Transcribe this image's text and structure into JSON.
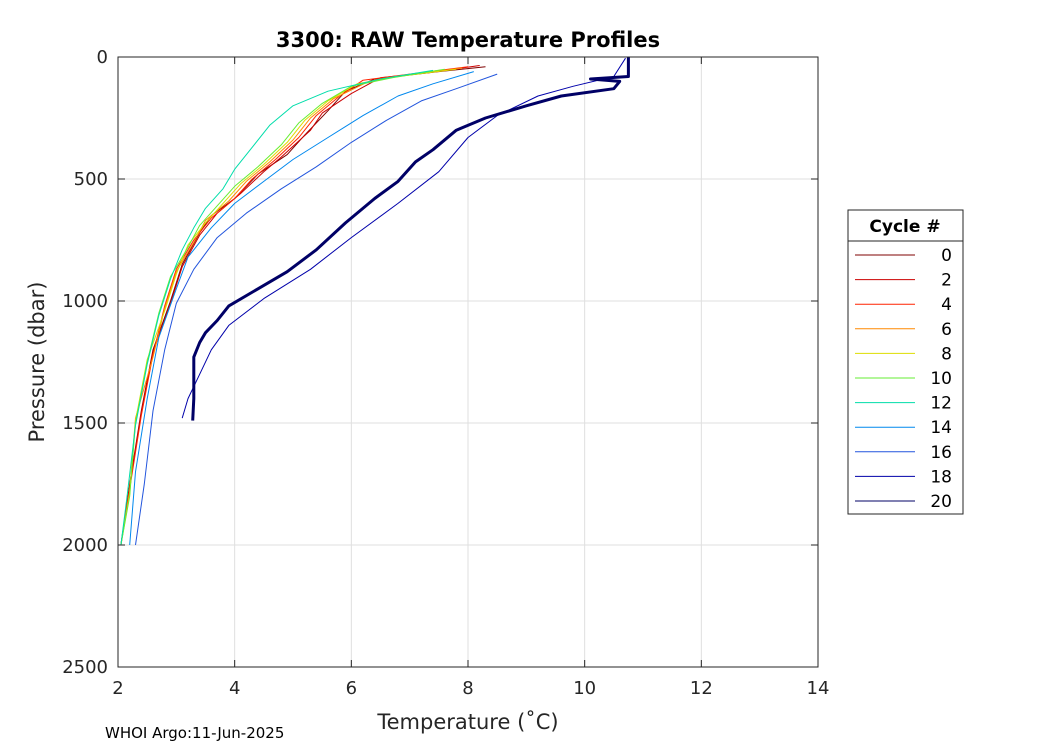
{
  "chart_data": {
    "type": "line",
    "title": "3300: RAW Temperature Profiles",
    "xlabel": "Temperature (˚C)",
    "ylabel": "Pressure (dbar)",
    "xlim": [
      2,
      14
    ],
    "ylim": [
      0,
      2500
    ],
    "y_reversed": true,
    "grid": true,
    "xticks": [
      2,
      4,
      6,
      8,
      10,
      12,
      14
    ],
    "yticks": [
      0,
      500,
      1000,
      1500,
      2000,
      2500
    ],
    "legend": {
      "title": "Cycle #",
      "placement": "right",
      "entries": [
        "0",
        "2",
        "4",
        "6",
        "8",
        "10",
        "12",
        "14",
        "16",
        "18",
        "20"
      ]
    },
    "series": [
      {
        "name": "0",
        "color": "#7f0000",
        "width": 1,
        "points": [
          [
            8.3,
            40
          ],
          [
            7.5,
            60
          ],
          [
            6.4,
            90
          ],
          [
            5.9,
            140
          ],
          [
            5.6,
            220
          ],
          [
            5.2,
            320
          ],
          [
            4.9,
            400
          ],
          [
            4.4,
            480
          ],
          [
            4.0,
            580
          ],
          [
            3.6,
            650
          ],
          [
            3.4,
            720
          ],
          [
            3.1,
            850
          ],
          [
            2.9,
            1000
          ],
          [
            2.6,
            1200
          ],
          [
            2.4,
            1450
          ],
          [
            2.2,
            1750
          ],
          [
            2.05,
            2000
          ]
        ]
      },
      {
        "name": "2",
        "color": "#cc0000",
        "width": 1,
        "points": [
          [
            8.2,
            35
          ],
          [
            7.3,
            65
          ],
          [
            6.5,
            85
          ],
          [
            6.0,
            150
          ],
          [
            5.5,
            230
          ],
          [
            5.3,
            300
          ],
          [
            4.8,
            410
          ],
          [
            4.5,
            470
          ],
          [
            4.1,
            560
          ],
          [
            3.7,
            640
          ],
          [
            3.4,
            730
          ],
          [
            3.1,
            860
          ],
          [
            2.9,
            1010
          ],
          [
            2.6,
            1210
          ],
          [
            2.4,
            1460
          ],
          [
            2.2,
            1760
          ],
          [
            2.05,
            2000
          ]
        ]
      },
      {
        "name": "4",
        "color": "#ff2200",
        "width": 1,
        "points": [
          [
            8.0,
            40
          ],
          [
            7.0,
            70
          ],
          [
            6.2,
            95
          ],
          [
            5.8,
            160
          ],
          [
            5.4,
            240
          ],
          [
            5.1,
            330
          ],
          [
            4.7,
            420
          ],
          [
            4.3,
            500
          ],
          [
            4.0,
            580
          ],
          [
            3.6,
            660
          ],
          [
            3.3,
            750
          ],
          [
            3.0,
            870
          ],
          [
            2.8,
            1020
          ],
          [
            2.6,
            1220
          ],
          [
            2.4,
            1470
          ],
          [
            2.2,
            1770
          ],
          [
            2.05,
            2000
          ]
        ]
      },
      {
        "name": "6",
        "color": "#ff8800",
        "width": 1,
        "points": [
          [
            7.9,
            45
          ],
          [
            6.9,
            75
          ],
          [
            6.3,
            100
          ],
          [
            5.7,
            170
          ],
          [
            5.3,
            250
          ],
          [
            5.0,
            340
          ],
          [
            4.6,
            430
          ],
          [
            4.2,
            510
          ],
          [
            3.9,
            590
          ],
          [
            3.5,
            670
          ],
          [
            3.3,
            760
          ],
          [
            3.0,
            880
          ],
          [
            2.8,
            1030
          ],
          [
            2.6,
            1230
          ],
          [
            2.3,
            1480
          ],
          [
            2.2,
            1780
          ],
          [
            2.05,
            2000
          ]
        ]
      },
      {
        "name": "8",
        "color": "#dddd00",
        "width": 1,
        "points": [
          [
            7.8,
            50
          ],
          [
            6.8,
            80
          ],
          [
            6.1,
            110
          ],
          [
            5.6,
            180
          ],
          [
            5.2,
            260
          ],
          [
            4.9,
            350
          ],
          [
            4.5,
            440
          ],
          [
            4.1,
            520
          ],
          [
            3.8,
            600
          ],
          [
            3.5,
            680
          ],
          [
            3.2,
            770
          ],
          [
            3.0,
            890
          ],
          [
            2.8,
            1040
          ],
          [
            2.5,
            1240
          ],
          [
            2.3,
            1490
          ],
          [
            2.2,
            1790
          ],
          [
            2.05,
            2000
          ]
        ]
      },
      {
        "name": "10",
        "color": "#66ee33",
        "width": 1,
        "points": [
          [
            7.6,
            50
          ],
          [
            6.7,
            85
          ],
          [
            6.0,
            120
          ],
          [
            5.5,
            190
          ],
          [
            5.1,
            270
          ],
          [
            4.8,
            360
          ],
          [
            4.4,
            450
          ],
          [
            4.0,
            530
          ],
          [
            3.7,
            610
          ],
          [
            3.4,
            690
          ],
          [
            3.2,
            780
          ],
          [
            2.9,
            900
          ],
          [
            2.7,
            1050
          ],
          [
            2.5,
            1250
          ],
          [
            2.3,
            1500
          ],
          [
            2.2,
            1800
          ],
          [
            2.05,
            2000
          ]
        ]
      },
      {
        "name": "12",
        "color": "#00ddaa",
        "width": 1,
        "points": [
          [
            7.4,
            55
          ],
          [
            6.5,
            90
          ],
          [
            5.6,
            140
          ],
          [
            5.0,
            200
          ],
          [
            4.6,
            280
          ],
          [
            4.3,
            370
          ],
          [
            4.0,
            460
          ],
          [
            3.8,
            540
          ],
          [
            3.5,
            620
          ],
          [
            3.3,
            700
          ],
          [
            3.1,
            790
          ],
          [
            2.9,
            910
          ],
          [
            2.7,
            1060
          ],
          [
            2.5,
            1260
          ],
          [
            2.3,
            1510
          ],
          [
            2.15,
            1810
          ],
          [
            2.05,
            2000
          ]
        ]
      },
      {
        "name": "14",
        "color": "#0088ee",
        "width": 1,
        "points": [
          [
            8.1,
            60
          ],
          [
            7.4,
            110
          ],
          [
            6.8,
            160
          ],
          [
            6.2,
            240
          ],
          [
            5.6,
            330
          ],
          [
            5.0,
            420
          ],
          [
            4.5,
            510
          ],
          [
            4.0,
            600
          ],
          [
            3.6,
            700
          ],
          [
            3.2,
            820
          ],
          [
            3.0,
            950
          ],
          [
            2.7,
            1150
          ],
          [
            2.5,
            1400
          ],
          [
            2.3,
            1700
          ],
          [
            2.2,
            2000
          ]
        ]
      },
      {
        "name": "16",
        "color": "#2255dd",
        "width": 1,
        "points": [
          [
            8.5,
            70
          ],
          [
            7.8,
            130
          ],
          [
            7.2,
            180
          ],
          [
            6.6,
            260
          ],
          [
            6.0,
            350
          ],
          [
            5.4,
            450
          ],
          [
            4.8,
            540
          ],
          [
            4.2,
            640
          ],
          [
            3.7,
            740
          ],
          [
            3.3,
            870
          ],
          [
            3.0,
            1010
          ],
          [
            2.8,
            1200
          ],
          [
            2.6,
            1450
          ],
          [
            2.45,
            1750
          ],
          [
            2.3,
            2000
          ]
        ]
      },
      {
        "name": "18",
        "color": "#0000aa",
        "width": 1,
        "points": [
          [
            10.7,
            5
          ],
          [
            10.5,
            80
          ],
          [
            9.8,
            120
          ],
          [
            9.2,
            160
          ],
          [
            8.5,
            240
          ],
          [
            8.0,
            330
          ],
          [
            7.5,
            470
          ],
          [
            6.8,
            600
          ],
          [
            6.0,
            740
          ],
          [
            5.3,
            870
          ],
          [
            4.5,
            990
          ],
          [
            3.9,
            1100
          ],
          [
            3.6,
            1200
          ],
          [
            3.4,
            1300
          ],
          [
            3.2,
            1400
          ],
          [
            3.1,
            1480
          ]
        ]
      },
      {
        "name": "20",
        "color": "#000066",
        "width": 3,
        "points": [
          [
            10.75,
            0
          ],
          [
            10.75,
            80
          ],
          [
            10.1,
            90
          ],
          [
            10.6,
            100
          ],
          [
            10.5,
            130
          ],
          [
            9.6,
            160
          ],
          [
            9.0,
            200
          ],
          [
            8.3,
            250
          ],
          [
            7.8,
            300
          ],
          [
            7.4,
            380
          ],
          [
            7.1,
            430
          ],
          [
            6.8,
            510
          ],
          [
            6.4,
            580
          ],
          [
            5.9,
            680
          ],
          [
            5.4,
            790
          ],
          [
            4.9,
            880
          ],
          [
            4.4,
            950
          ],
          [
            3.9,
            1020
          ],
          [
            3.7,
            1080
          ],
          [
            3.5,
            1130
          ],
          [
            3.4,
            1170
          ],
          [
            3.3,
            1230
          ],
          [
            3.3,
            1300
          ],
          [
            3.3,
            1400
          ],
          [
            3.28,
            1490
          ]
        ]
      }
    ]
  },
  "footer": "WHOI Argo:11-Jun-2025"
}
